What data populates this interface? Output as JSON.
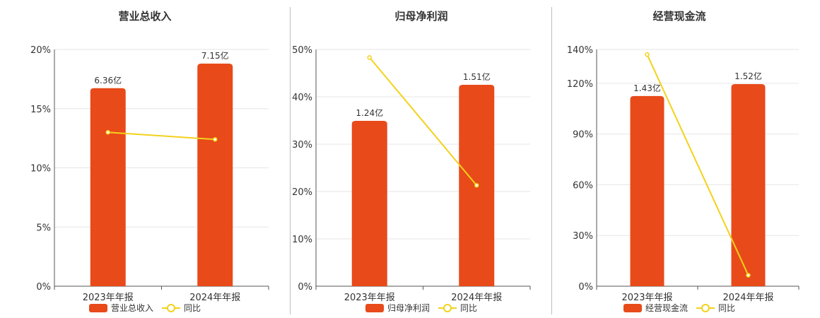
{
  "colors": {
    "bar": "#e84a1a",
    "line": "#f2d21b",
    "grid": "#e6e6e6",
    "axis": "#555555"
  },
  "chart_data": [
    {
      "type": "bar",
      "title": "营业总收入",
      "categories": [
        "2023年年报",
        "2024年年报"
      ],
      "series": [
        {
          "name": "营业总收入",
          "type": "bar",
          "values": [
            6.36,
            7.15
          ],
          "labels": [
            "6.36亿",
            "7.15亿"
          ],
          "unit": "亿"
        },
        {
          "name": "同比",
          "type": "line",
          "values": [
            13.0,
            12.4
          ],
          "unit": "%"
        }
      ],
      "yticks": [
        "0%",
        "5%",
        "10%",
        "15%",
        "20%"
      ],
      "ylim": [
        0,
        20
      ]
    },
    {
      "type": "bar",
      "title": "归母净利润",
      "categories": [
        "2023年年报",
        "2024年年报"
      ],
      "series": [
        {
          "name": "归母净利润",
          "type": "bar",
          "values": [
            1.24,
            1.51
          ],
          "labels": [
            "1.24亿",
            "1.51亿"
          ],
          "unit": "亿"
        },
        {
          "name": "同比",
          "type": "line",
          "values": [
            48.3,
            21.3
          ],
          "unit": "%"
        }
      ],
      "yticks": [
        "0%",
        "10%",
        "20%",
        "30%",
        "40%",
        "50%"
      ],
      "ylim": [
        0,
        50
      ]
    },
    {
      "type": "bar",
      "title": "经营现金流",
      "categories": [
        "2023年年报",
        "2024年年报"
      ],
      "series": [
        {
          "name": "经营现金流",
          "type": "bar",
          "values": [
            1.43,
            1.52
          ],
          "labels": [
            "1.43亿",
            "1.52亿"
          ],
          "unit": "亿"
        },
        {
          "name": "同比",
          "type": "line",
          "values": [
            137.0,
            6.5
          ],
          "unit": "%"
        }
      ],
      "yticks": [
        "0%",
        "30%",
        "60%",
        "90%",
        "120%",
        "140%"
      ],
      "yticks_values": [
        0,
        30,
        60,
        90,
        120,
        140
      ],
      "ylim": [
        0,
        140
      ]
    }
  ]
}
